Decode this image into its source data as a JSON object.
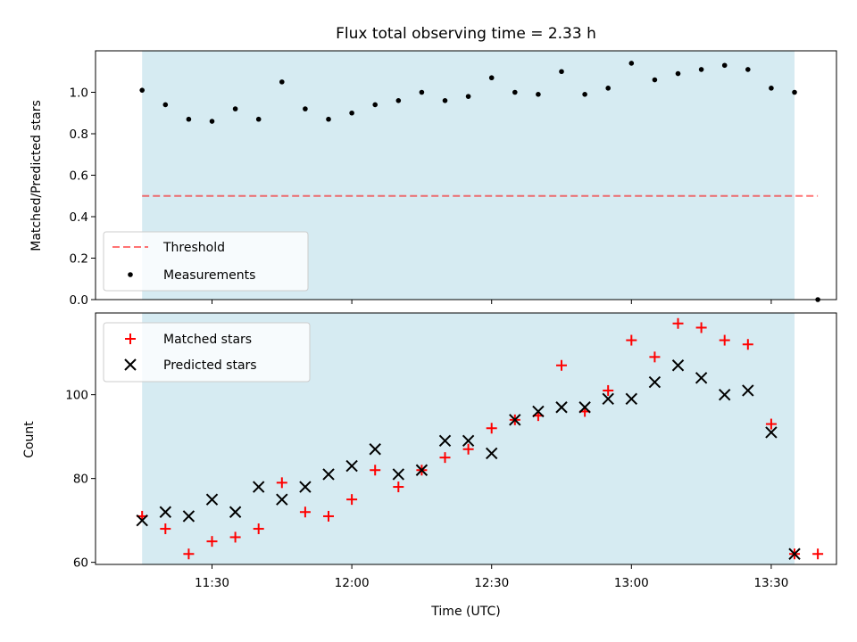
{
  "figure": {
    "title": "Flux total observing time = 2.33 h",
    "xlabel": "Time (UTC)"
  },
  "colors": {
    "span": "#add8e6",
    "threshold": "#ff0000",
    "measurement": "#000000",
    "matched": "#ff0000",
    "predicted": "#000000"
  },
  "chart_data": [
    {
      "type": "scatter",
      "ylabel": "Matched/Predicted stars",
      "xlim": [
        "11:05",
        "13:44"
      ],
      "ylim": [
        0,
        1.2
      ],
      "xticks": [
        "11:30",
        "12:00",
        "12:30",
        "13:00",
        "13:30"
      ],
      "yticks": [
        "0.0",
        "0.2",
        "0.4",
        "0.6",
        "0.8",
        "1.0"
      ],
      "yticks_values": [
        0,
        0.2,
        0.4,
        0.6,
        0.8,
        1.0
      ],
      "shaded_span": [
        "11:15",
        "13:35"
      ],
      "threshold": {
        "name": "Threshold",
        "value": 0.5,
        "x_range": [
          "11:15",
          "13:40"
        ]
      },
      "legend": {
        "placement": "lower-left",
        "entries": [
          "Threshold",
          "Measurements"
        ]
      },
      "series": [
        {
          "name": "Measurements",
          "x": [
            "11:15",
            "11:20",
            "11:25",
            "11:30",
            "11:35",
            "11:40",
            "11:45",
            "11:50",
            "11:55",
            "12:00",
            "12:05",
            "12:10",
            "12:15",
            "12:20",
            "12:25",
            "12:30",
            "12:35",
            "12:40",
            "12:45",
            "12:50",
            "12:55",
            "13:00",
            "13:05",
            "13:10",
            "13:15",
            "13:20",
            "13:25",
            "13:30",
            "13:35",
            "13:40"
          ],
          "y": [
            1.01,
            0.94,
            0.87,
            0.86,
            0.92,
            0.87,
            1.05,
            0.92,
            0.87,
            0.9,
            0.94,
            0.96,
            1.0,
            0.96,
            0.98,
            1.07,
            1.0,
            0.99,
            1.1,
            0.99,
            1.02,
            1.14,
            1.06,
            1.09,
            1.11,
            1.13,
            1.11,
            1.02,
            1.0,
            0.0
          ]
        }
      ]
    },
    {
      "type": "scatter",
      "ylabel": "Count",
      "xlim": [
        "11:05",
        "13:44"
      ],
      "ylim": [
        59.5,
        119.5
      ],
      "xticks": [
        "11:30",
        "12:00",
        "12:30",
        "13:00",
        "13:30"
      ],
      "yticks": [
        "60",
        "80",
        "100"
      ],
      "yticks_values": [
        60,
        80,
        100
      ],
      "shaded_span": [
        "11:15",
        "13:35"
      ],
      "legend": {
        "placement": "upper-left",
        "entries": [
          "Matched stars",
          "Predicted stars"
        ]
      },
      "series": [
        {
          "name": "Matched stars",
          "x": [
            "11:15",
            "11:20",
            "11:25",
            "11:30",
            "11:35",
            "11:40",
            "11:45",
            "11:50",
            "11:55",
            "12:00",
            "12:05",
            "12:10",
            "12:15",
            "12:20",
            "12:25",
            "12:30",
            "12:35",
            "12:40",
            "12:45",
            "12:50",
            "12:55",
            "13:00",
            "13:05",
            "13:10",
            "13:15",
            "13:20",
            "13:25",
            "13:30",
            "13:35",
            "13:40"
          ],
          "y": [
            71,
            68,
            62,
            65,
            66,
            68,
            79,
            72,
            71,
            75,
            82,
            78,
            82,
            85,
            87,
            92,
            94,
            95,
            107,
            96,
            101,
            113,
            109,
            117,
            116,
            113,
            112,
            93,
            62,
            62
          ]
        },
        {
          "name": "Predicted stars",
          "x": [
            "11:15",
            "11:20",
            "11:25",
            "11:30",
            "11:35",
            "11:40",
            "11:45",
            "11:50",
            "11:55",
            "12:00",
            "12:05",
            "12:10",
            "12:15",
            "12:20",
            "12:25",
            "12:30",
            "12:35",
            "12:40",
            "12:45",
            "12:50",
            "12:55",
            "13:00",
            "13:05",
            "13:10",
            "13:15",
            "13:20",
            "13:25",
            "13:30",
            "13:35"
          ],
          "y": [
            70,
            72,
            71,
            75,
            72,
            78,
            75,
            78,
            81,
            83,
            87,
            81,
            82,
            89,
            89,
            86,
            94,
            96,
            97,
            97,
            99,
            99,
            103,
            107,
            104,
            100,
            101,
            91,
            62
          ]
        }
      ]
    }
  ]
}
